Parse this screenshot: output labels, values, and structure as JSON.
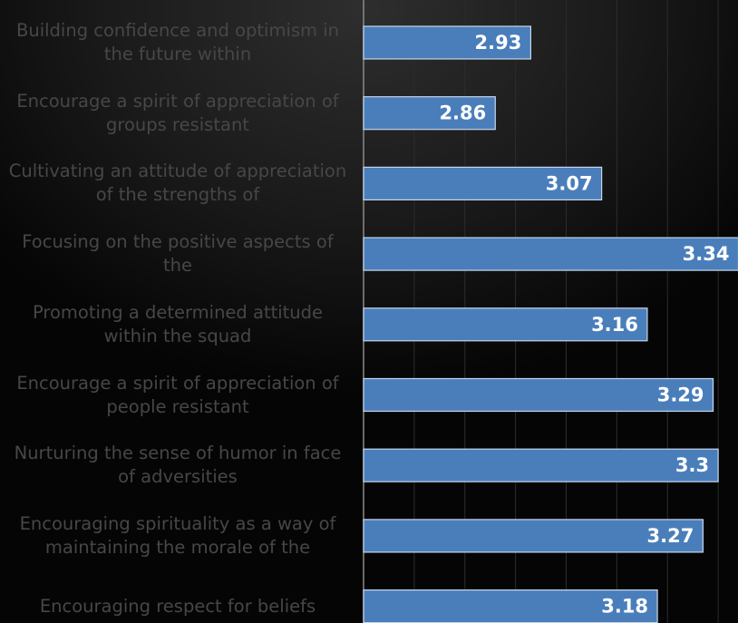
{
  "chart_data": {
    "type": "bar",
    "categories": [
      "Building confidence and optimism in the future within",
      "Encourage a spirit of appreciation of groups resistant",
      "Cultivating an attitude of appreciation of the strengths of",
      "Focusing on the positive aspects of the",
      "Promoting a determined attitude within the squad",
      "Encourage a spirit of appreciation of people resistant",
      "Nurturing the sense of humor in face of adversities",
      "Encouraging spirituality as a way of maintaining the morale of the",
      "Encouraging respect for beliefs"
    ],
    "values": [
      2.93,
      2.86,
      3.07,
      3.34,
      3.16,
      3.29,
      3.3,
      3.27,
      3.18
    ],
    "color": "#4a7ebb",
    "xlim": [
      2.6,
      3.4
    ],
    "xticks": [
      2.6,
      2.7,
      2.8,
      2.9,
      3,
      3.1,
      3.2,
      3.3,
      3.4
    ],
    "grid": true
  }
}
